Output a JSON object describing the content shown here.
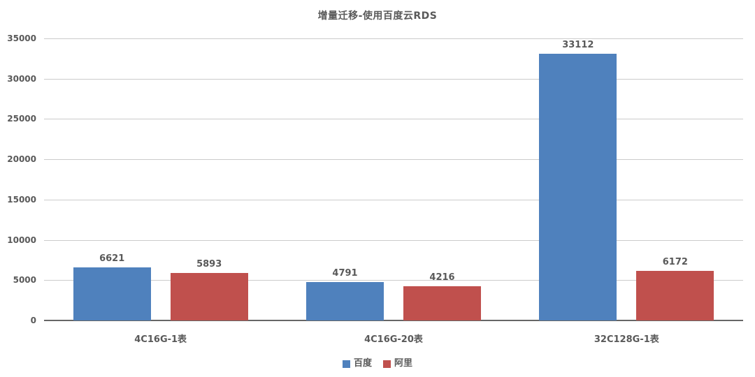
{
  "title": "增量迁移-使用百度云RDS",
  "colors": {
    "series_baidu": "#4F81BD",
    "series_ali": "#C0504D",
    "text": "#595959",
    "gridline": "#CBCBCB",
    "axis_line": "#666666",
    "background": "#FFFFFF"
  },
  "chart_data": {
    "type": "bar",
    "title": "增量迁移-使用百度云RDS",
    "categories": [
      "4C16G-1表",
      "4C16G-20表",
      "32C128G-1表"
    ],
    "series": [
      {
        "name": "百度",
        "color": "#4F81BD",
        "values": [
          6621,
          4791,
          33112
        ]
      },
      {
        "name": "阿里",
        "color": "#C0504D",
        "values": [
          5893,
          4216,
          6172
        ]
      }
    ],
    "xlabel": "",
    "ylabel": "",
    "ylim": [
      0,
      35000
    ],
    "ytick_step": 5000,
    "ytick_labels": [
      "0",
      "5000",
      "10000",
      "15000",
      "20000",
      "25000",
      "30000",
      "35000"
    ],
    "grid": true,
    "legend_position": "bottom",
    "value_labels_shown": true
  }
}
